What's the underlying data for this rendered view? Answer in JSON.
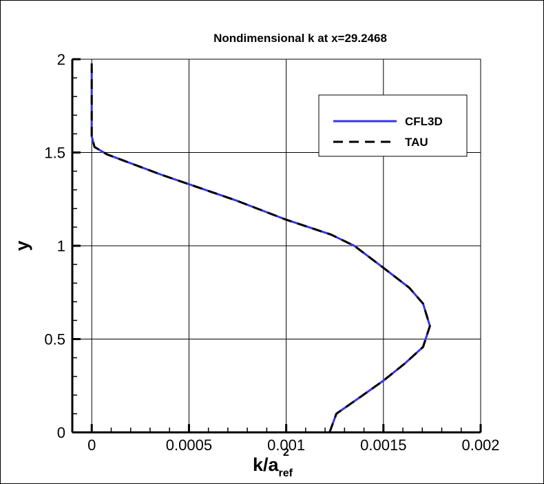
{
  "chart_data": {
    "type": "line",
    "title": "Nondimensional k at x=29.2468",
    "xlabel": "k/a",
    "xlabel_sub": "ref",
    "xlabel_sup": "2",
    "ylabel": "y",
    "xlim": [
      -0.0001,
      0.002
    ],
    "ylim": [
      0,
      2
    ],
    "xticks": [
      0,
      0.0005,
      0.001,
      0.0015,
      0.002
    ],
    "xtick_labels": [
      "0",
      "0.0005",
      "0.001",
      "0.0015",
      "0.002"
    ],
    "yticks": [
      0,
      0.5,
      1,
      1.5,
      2
    ],
    "ytick_labels": [
      "0",
      "0.5",
      "1",
      "1.5",
      "2"
    ],
    "grid": true,
    "legend_position": "top-right",
    "series": [
      {
        "name": "CFL3D",
        "color": "#3535e8",
        "style": "solid",
        "x": [
          0.001223,
          0.001258,
          0.001375,
          0.0015,
          0.00161,
          0.001704,
          0.001739,
          0.001704,
          0.001633,
          0.0015,
          0.00135,
          0.00123,
          0.001,
          0.00074,
          0.0005,
          0.00036,
          7.8e-05,
          1.4e-05,
          0,
          0
        ],
        "y": [
          0,
          0.1,
          0.185,
          0.277,
          0.369,
          0.458,
          0.57,
          0.69,
          0.775,
          0.882,
          1.0,
          1.06,
          1.14,
          1.244,
          1.33,
          1.38,
          1.49,
          1.53,
          1.587,
          1.95
        ]
      },
      {
        "name": "TAU",
        "color": "#000000",
        "style": "dashed",
        "x": [
          0.001223,
          0.001258,
          0.001375,
          0.0015,
          0.00161,
          0.001704,
          0.001739,
          0.001704,
          0.001633,
          0.0015,
          0.00135,
          0.00123,
          0.001,
          0.00074,
          0.0005,
          0.00036,
          7.8e-05,
          1.4e-05,
          0,
          0
        ],
        "y": [
          0,
          0.1,
          0.185,
          0.277,
          0.369,
          0.458,
          0.57,
          0.69,
          0.775,
          0.882,
          1.0,
          1.06,
          1.14,
          1.244,
          1.33,
          1.38,
          1.49,
          1.53,
          1.587,
          2.0
        ]
      }
    ]
  }
}
